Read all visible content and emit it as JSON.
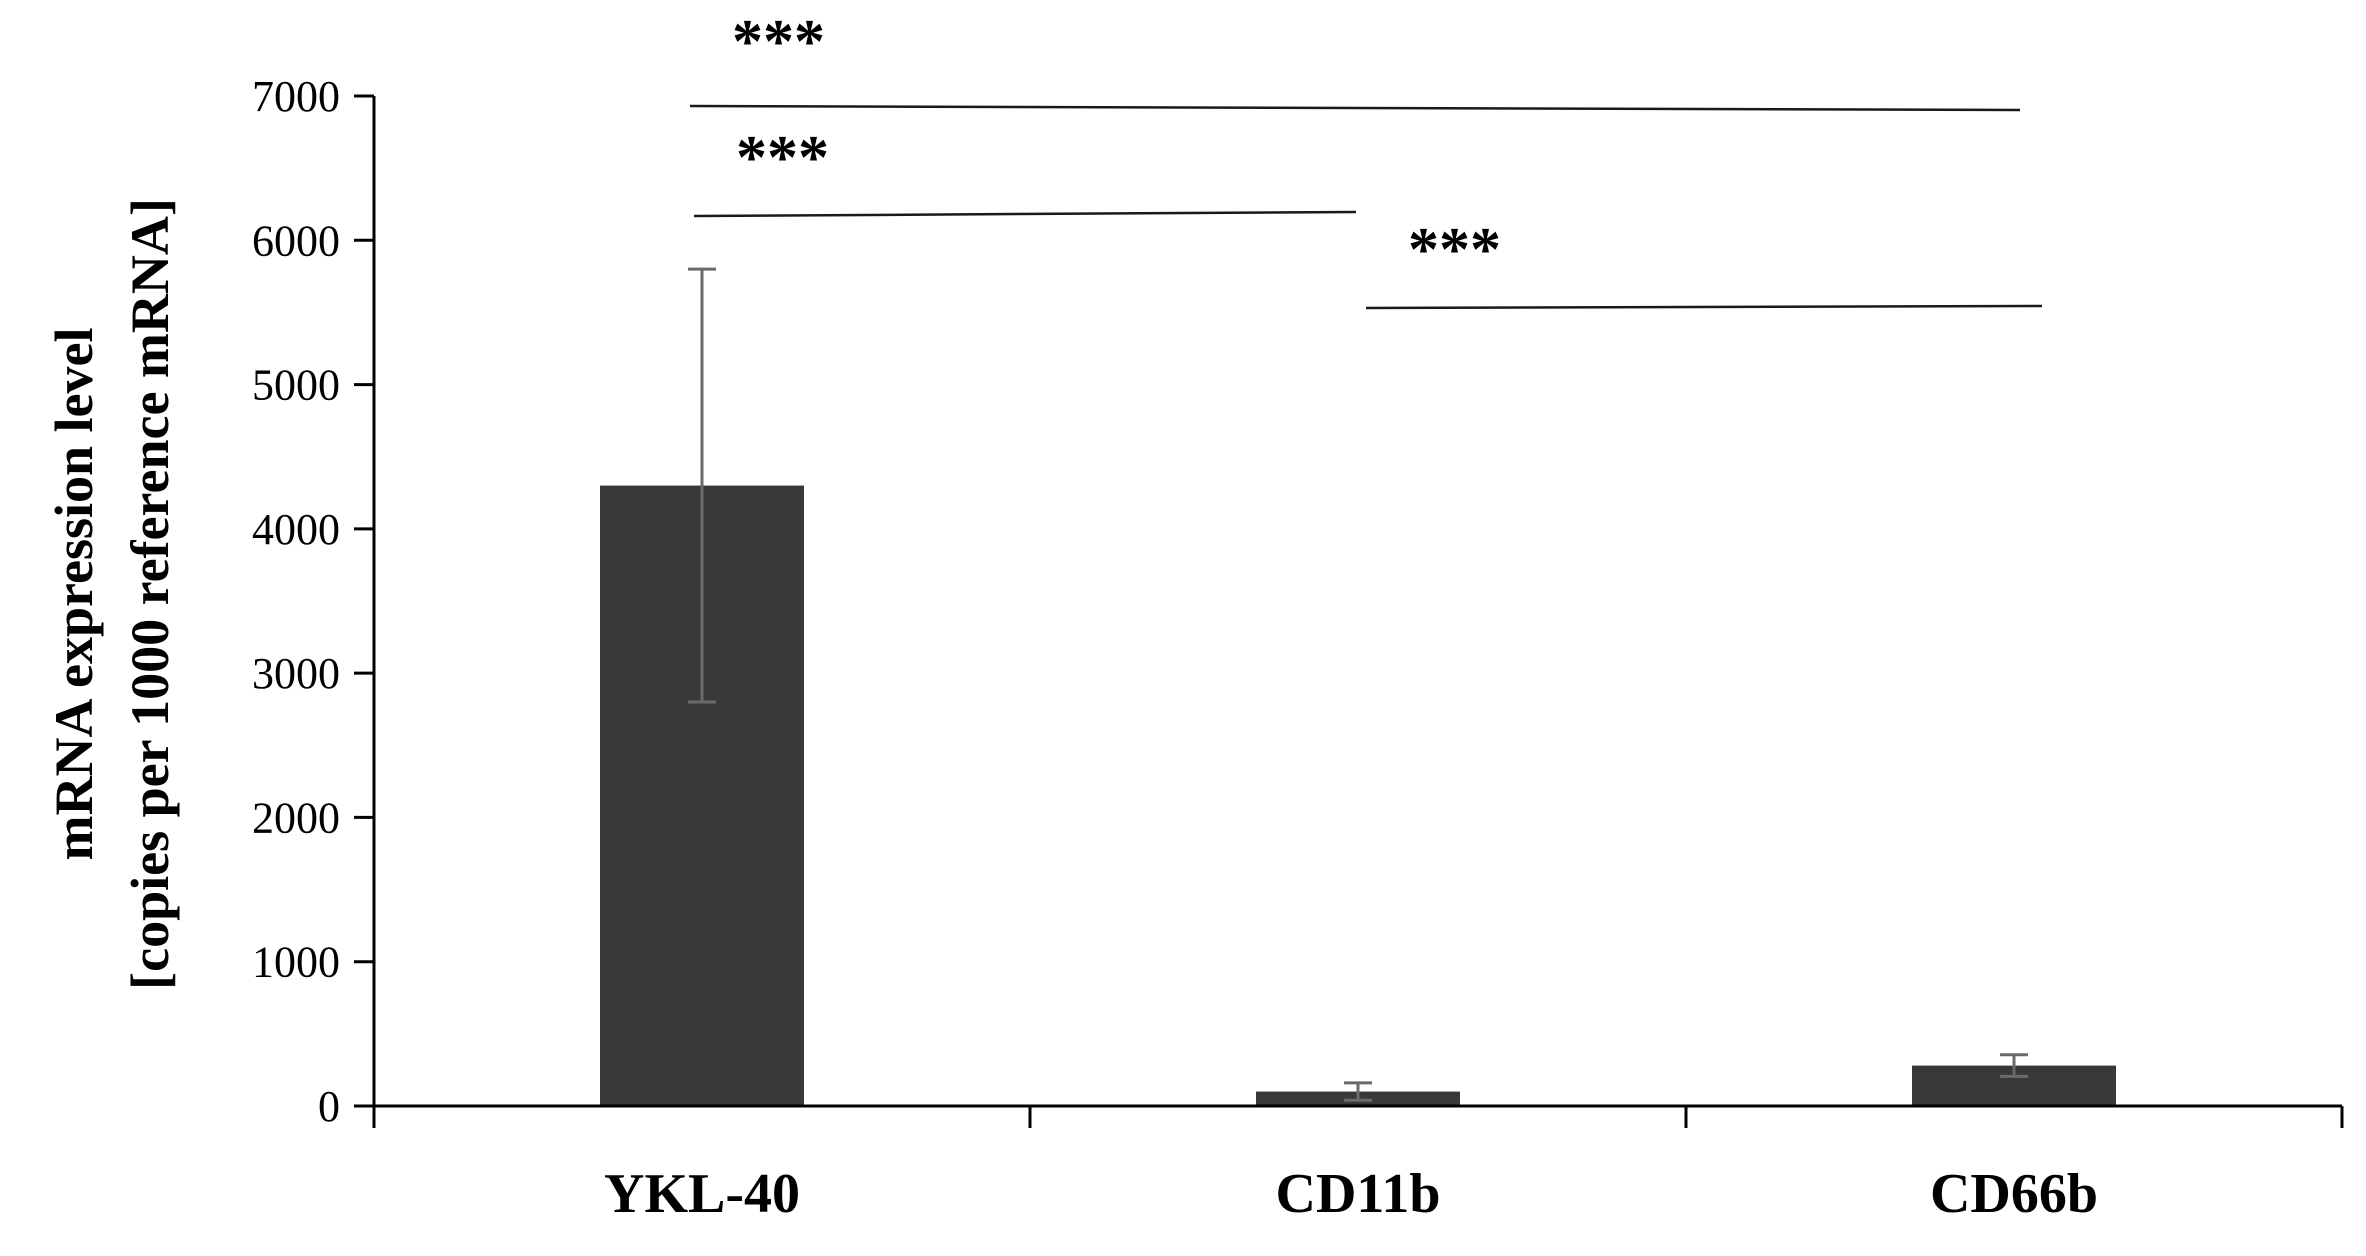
{
  "chart_data": {
    "type": "bar",
    "categories": [
      "YKL-40",
      "CD11b",
      "CD66b"
    ],
    "values": [
      4300,
      100,
      280
    ],
    "error": [
      1500,
      60,
      75
    ],
    "title": "",
    "xlabel": "",
    "ylabel": [
      "mRNA expression level",
      "[copies per 1000 reference mRNA]"
    ],
    "ylim": [
      0,
      7000
    ],
    "yticks": [
      0,
      1000,
      2000,
      3000,
      4000,
      5000,
      6000,
      7000
    ],
    "grid": false,
    "legend": "none",
    "significance": [
      {
        "from": "YKL-40",
        "to": "CD66b",
        "label": "***"
      },
      {
        "from": "YKL-40",
        "to": "CD11b",
        "label": "***"
      },
      {
        "from": "CD11b",
        "to": "CD66b",
        "label": "***"
      }
    ],
    "colors": {
      "bar": "#3a3836",
      "axis": "#000000",
      "error_bar": "#6a6a6a",
      "bracket": "#1a1a1a"
    }
  }
}
